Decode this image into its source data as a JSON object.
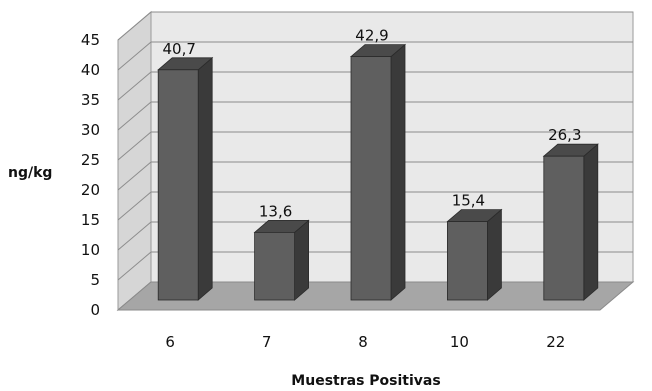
{
  "chart_data": {
    "type": "bar",
    "title": "",
    "xlabel": "Muestras Positivas",
    "ylabel": "ng/kg",
    "categories": [
      "6",
      "7",
      "8",
      "10",
      "22"
    ],
    "values": [
      40.7,
      13.6,
      42.9,
      15.4,
      26.3
    ],
    "data_labels": [
      "40,7",
      "13,6",
      "42,9",
      "15,4",
      "26,3"
    ],
    "ylim": [
      0,
      45
    ],
    "yticks": [
      {
        "value": 0,
        "label": "0"
      },
      {
        "value": 5,
        "label": "5"
      },
      {
        "value": 10,
        "label": "10"
      },
      {
        "value": 15,
        "label": "15"
      },
      {
        "value": 20,
        "label": "20"
      },
      {
        "value": 25,
        "label": "25"
      },
      {
        "value": 30,
        "label": "30"
      },
      {
        "value": 35,
        "label": "35"
      },
      {
        "value": 40,
        "label": "40"
      },
      {
        "value": 45,
        "label": "45"
      }
    ],
    "grid": true,
    "style": "3d-column",
    "colors": {
      "bar_front": "#5f5f5f",
      "bar_side": "#3a3a3a",
      "bar_top": "#4a4a4a",
      "wall": "#e9e9e9",
      "floor": "#a6a6a6",
      "gridline": "#8c8c8c"
    }
  }
}
